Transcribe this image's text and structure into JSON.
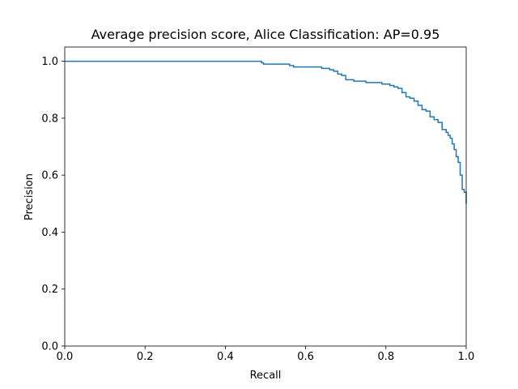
{
  "chart_data": {
    "type": "line",
    "title": "Average precision score, Alice Classification: AP=0.95",
    "xlabel": "Recall",
    "ylabel": "Precision",
    "xlim": [
      0.0,
      1.0
    ],
    "ylim": [
      0.0,
      1.05
    ],
    "xticks": [
      "0.0",
      "0.2",
      "0.4",
      "0.6",
      "0.8",
      "1.0"
    ],
    "yticks": [
      "0.0",
      "0.2",
      "0.4",
      "0.6",
      "0.8",
      "1.0"
    ],
    "grid": false,
    "colors": {
      "line": "#1f77b4",
      "axes": "#000000",
      "background": "#ffffff"
    },
    "series": [
      {
        "step": "post",
        "x": [
          0.0,
          0.49,
          0.49,
          0.495,
          0.5,
          0.56,
          0.57,
          0.63,
          0.64,
          0.66,
          0.67,
          0.68,
          0.69,
          0.7,
          0.72,
          0.74,
          0.75,
          0.77,
          0.79,
          0.8,
          0.81,
          0.82,
          0.83,
          0.84,
          0.85,
          0.86,
          0.87,
          0.88,
          0.89,
          0.9,
          0.91,
          0.92,
          0.93,
          0.94,
          0.95,
          0.955,
          0.96,
          0.965,
          0.97,
          0.975,
          0.98,
          0.985,
          0.99,
          0.995,
          1.0
        ],
        "y": [
          1.0,
          1.0,
          0.995,
          0.99,
          0.99,
          0.985,
          0.98,
          0.98,
          0.975,
          0.97,
          0.965,
          0.955,
          0.95,
          0.935,
          0.93,
          0.93,
          0.925,
          0.925,
          0.92,
          0.92,
          0.915,
          0.91,
          0.905,
          0.89,
          0.875,
          0.87,
          0.86,
          0.845,
          0.83,
          0.825,
          0.805,
          0.795,
          0.785,
          0.76,
          0.75,
          0.74,
          0.73,
          0.71,
          0.69,
          0.665,
          0.645,
          0.6,
          0.55,
          0.54,
          0.5
        ]
      }
    ]
  }
}
